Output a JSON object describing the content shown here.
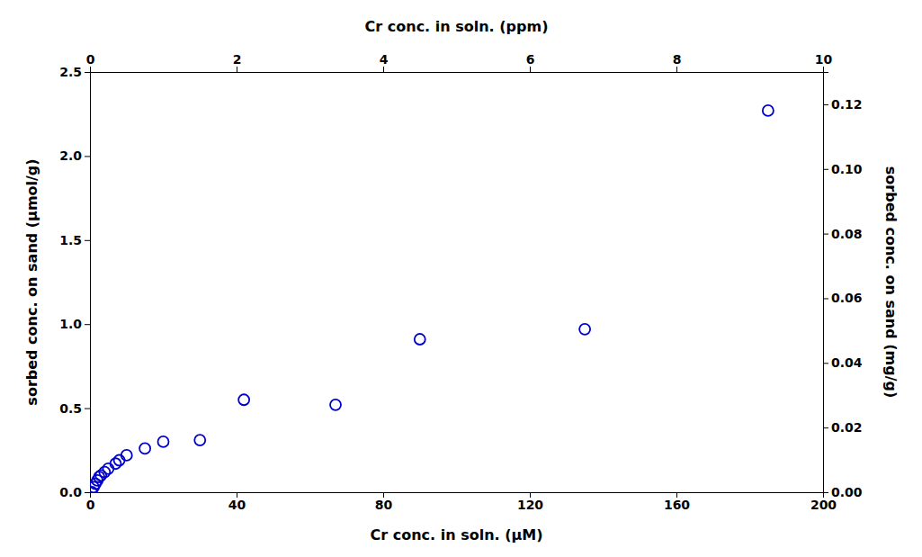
{
  "chart_data": {
    "type": "scatter",
    "x": [
      0.5,
      1.0,
      1.5,
      2.0,
      2.5,
      3.0,
      4.0,
      5.0,
      7.0,
      8.0,
      10.0,
      15.0,
      20.0,
      30.0,
      42.0,
      67.0,
      90.0,
      135.0,
      185.0
    ],
    "values": [
      0.0,
      0.03,
      0.05,
      0.07,
      0.09,
      0.1,
      0.12,
      0.14,
      0.17,
      0.19,
      0.22,
      0.26,
      0.3,
      0.31,
      0.55,
      0.52,
      0.91,
      0.97,
      2.27
    ],
    "color": "#0000CC",
    "marker": "open_circle",
    "xlabel": "Cr conc. in soln. (μM)",
    "x2label": "Cr conc. in soln. (ppm)",
    "ylabel": "sorbed conc. on sand (μmol/g)",
    "y2label": "sorbed conc. on sand (mg/g)",
    "xlim": [
      0,
      200
    ],
    "xticks": [
      0,
      40,
      80,
      120,
      160,
      200
    ],
    "x2lim": [
      0,
      10
    ],
    "x2ticks": [
      0,
      2,
      4,
      6,
      8,
      10
    ],
    "ylim": [
      0.0,
      2.5
    ],
    "yticks": [
      {
        "value": 0.0,
        "label": "0.0"
      },
      0.5,
      {
        "value": 1.0,
        "label": "1.0"
      },
      1.5,
      {
        "value": 2.0,
        "label": "2.0"
      },
      2.5
    ],
    "y2lim": [
      0.0,
      0.13
    ],
    "y2ticks": [
      {
        "value": 0.0,
        "label": "0.00"
      },
      {
        "value": 0.02,
        "label": "0.02"
      },
      {
        "value": 0.04,
        "label": "0.04"
      },
      {
        "value": 0.06,
        "label": "0.06"
      },
      {
        "value": 0.08,
        "label": "0.08"
      },
      {
        "value": 0.1,
        "label": "0.10"
      },
      {
        "value": 0.12,
        "label": "0.12"
      }
    ],
    "grid": false
  }
}
